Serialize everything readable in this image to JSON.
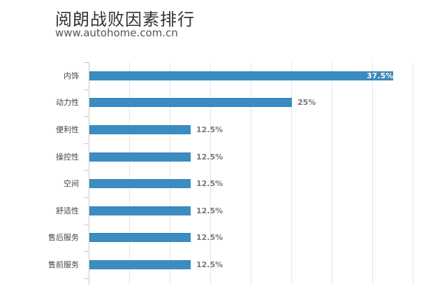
{
  "header": {
    "title": "阅朗战败因素排行",
    "subtitle": "www.autohome.com.cn"
  },
  "colors": {
    "bar": "#3a8cc1",
    "grid": "#e6e6e6",
    "label": "#777777"
  },
  "chart_data": {
    "type": "bar",
    "orientation": "horizontal",
    "title": "阅朗战败因素排行",
    "subtitle": "www.autohome.com.cn",
    "categories": [
      "内饰",
      "动力性",
      "便利性",
      "操控性",
      "空间",
      "舒适性",
      "售后服务",
      "售前服务"
    ],
    "values": [
      37.5,
      25,
      12.5,
      12.5,
      12.5,
      12.5,
      12.5,
      12.5
    ],
    "value_labels": [
      "37.5%",
      "25%",
      "12.5%",
      "12.5%",
      "12.5%",
      "12.5%",
      "12.5%",
      "12.5%"
    ],
    "xlabel": "",
    "ylabel": "",
    "xlim": [
      0,
      40
    ],
    "grid": true,
    "grid_interval": 5,
    "legend": null
  }
}
